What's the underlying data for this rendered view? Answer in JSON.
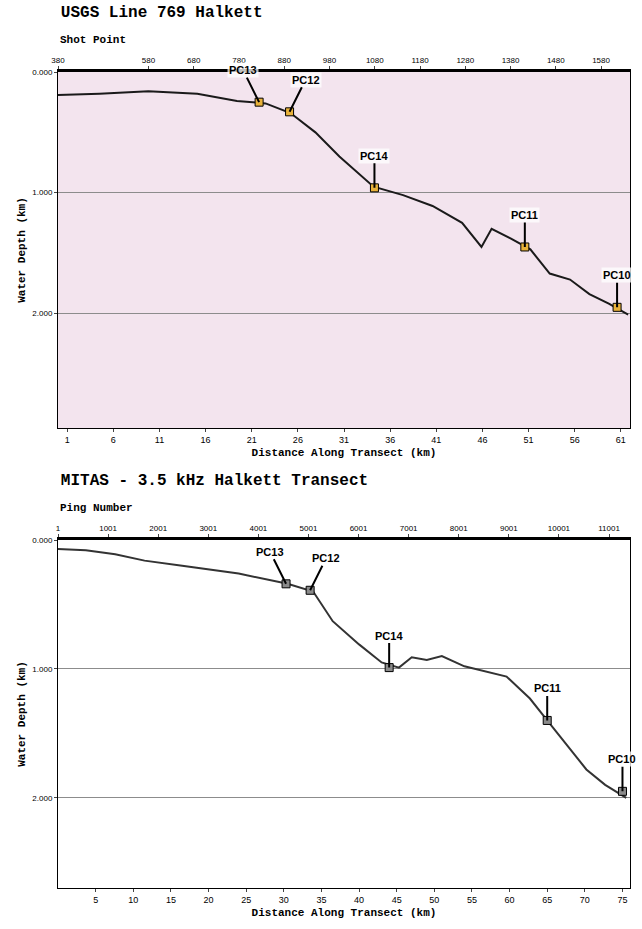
{
  "chart_data": [
    {
      "type": "line",
      "title": "USGS Line 769 Halkett",
      "x2_label": "Shot Point",
      "x_label": "Distance Along Transect (km)",
      "y_label": "Water Depth (km)",
      "color": "#1a1a1a",
      "grid": true,
      "x": [
        0.0,
        4.5,
        9.8,
        15.1,
        19.4,
        22.5,
        25.2,
        27.9,
        30.5,
        34.2,
        37.4,
        40.6,
        43.8,
        45.9,
        47.0,
        49.1,
        51.2,
        53.3,
        55.5,
        57.6,
        59.7,
        61.8
      ],
      "values": [
        0.19,
        0.18,
        0.16,
        0.18,
        0.24,
        0.26,
        0.34,
        0.5,
        0.7,
        0.95,
        1.02,
        1.11,
        1.25,
        1.45,
        1.3,
        1.38,
        1.47,
        1.67,
        1.72,
        1.84,
        1.92,
        2.01
      ],
      "xlim": [
        0,
        62
      ],
      "xticks": [
        1,
        6,
        11,
        16,
        21,
        26,
        31,
        36,
        41,
        46,
        51,
        56,
        61
      ],
      "x2lim": [
        380,
        1644
      ],
      "x2ticks": [
        380,
        580,
        680,
        780,
        880,
        980,
        1080,
        1180,
        1280,
        1380,
        1480,
        1580
      ],
      "ylim": [
        2.95,
        0
      ],
      "yticks": [
        {
          "value": 0,
          "label": "0.000"
        },
        {
          "value": 1,
          "label": "1.000"
        },
        {
          "value": 2,
          "label": "2.000"
        }
      ],
      "annotations": [
        {
          "text": "PC13",
          "x": 21.8,
          "y": 0.25,
          "color": "#e8b23a"
        },
        {
          "text": "PC12",
          "x": 25.1,
          "y": 0.33,
          "color": "#e8b23a"
        },
        {
          "text": "PC14",
          "x": 34.3,
          "y": 0.96,
          "color": "#e8b23a"
        },
        {
          "text": "PC11",
          "x": 50.6,
          "y": 1.45,
          "color": "#e8b23a"
        },
        {
          "text": "PC10",
          "x": 60.6,
          "y": 1.95,
          "color": "#e8b23a"
        }
      ]
    },
    {
      "type": "line",
      "title": "MITAS - 3.5 kHz Halkett Transect",
      "x2_label": "Ping Number",
      "x_label": "Distance Along Transect (km)",
      "y_label": "Water Depth (km)",
      "color": "#333333",
      "grid": true,
      "x": [
        0,
        3.7,
        7.6,
        11.5,
        16.5,
        24,
        30.5,
        33.9,
        36.5,
        40,
        43,
        45.3,
        47,
        49,
        51,
        54,
        59.6,
        62.7,
        65,
        67.3,
        70.2,
        72.7,
        75.5
      ],
      "values": [
        0.07,
        0.08,
        0.11,
        0.16,
        0.2,
        0.26,
        0.34,
        0.4,
        0.63,
        0.81,
        0.95,
        0.99,
        0.91,
        0.93,
        0.9,
        0.98,
        1.06,
        1.23,
        1.4,
        1.57,
        1.78,
        1.9,
        2.0
      ],
      "xlim": [
        0,
        76
      ],
      "xticks": [
        5,
        10,
        15,
        20,
        25,
        30,
        35,
        40,
        45,
        50,
        55,
        60,
        65,
        70,
        75
      ],
      "x2lim": [
        1,
        11420
      ],
      "x2ticks": [
        1,
        1001,
        2001,
        3001,
        4001,
        5001,
        6001,
        7001,
        8001,
        9001,
        10001,
        11001
      ],
      "ylim": [
        2.7,
        0
      ],
      "yticks": [
        {
          "value": 0,
          "label": "0.000"
        },
        {
          "value": 1,
          "label": "1.000"
        },
        {
          "value": 2,
          "label": "2.000"
        }
      ],
      "annotations": [
        {
          "text": "PC13",
          "x": 30.3,
          "y": 0.34,
          "color": "#8a8a8a"
        },
        {
          "text": "PC12",
          "x": 33.5,
          "y": 0.39,
          "color": "#8a8a8a"
        },
        {
          "text": "PC14",
          "x": 44.0,
          "y": 0.99,
          "color": "#8a8a8a"
        },
        {
          "text": "PC11",
          "x": 65.0,
          "y": 1.4,
          "color": "#8a8a8a"
        },
        {
          "text": "PC10",
          "x": 75.0,
          "y": 1.95,
          "color": "#8a8a8a"
        }
      ]
    }
  ]
}
